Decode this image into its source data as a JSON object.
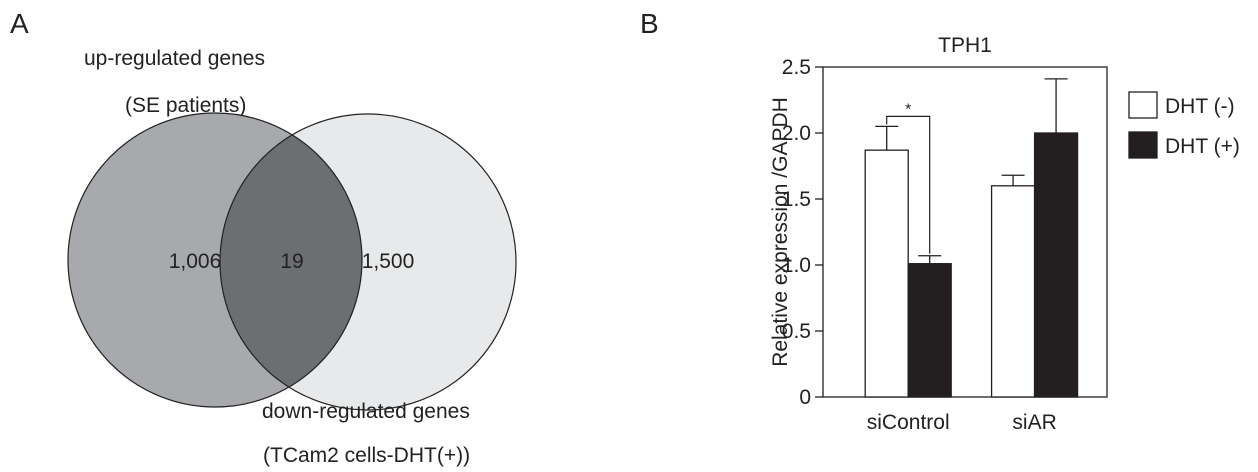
{
  "panel_a": {
    "letter": "A",
    "set_left_title": "up-regulated genes",
    "set_left_subtitle": "(SE patients)",
    "set_right_title": "down-regulated genes",
    "set_right_subtitle": "(TCam2 cells-DHT(+))",
    "left_only_count": "1,006",
    "intersection_count": "19",
    "right_only_count": "1,500",
    "colors": {
      "left": "#a7a9ac",
      "right": "#e8e9ea",
      "overlap": "#6d6e71",
      "stroke": "#222222"
    }
  },
  "panel_b": {
    "letter": "B"
  },
  "chart_data": {
    "type": "bar",
    "title": "TPH1",
    "ylabel": "Relative expression /GAPDH",
    "xlabel": "",
    "categories": [
      "siControl",
      "siAR"
    ],
    "series": [
      {
        "name": "DHT (-)",
        "color": "#ffffff",
        "values": [
          1.87,
          1.6
        ],
        "errors": [
          0.18,
          0.08
        ]
      },
      {
        "name": "DHT (+)",
        "color": "#231f20",
        "values": [
          1.01,
          2.0
        ],
        "errors": [
          0.06,
          0.41
        ]
      }
    ],
    "ylim": [
      0,
      2.5
    ],
    "yticks": [
      0,
      0.5,
      1.0,
      1.5,
      2.0,
      2.5
    ],
    "ytick_labels": [
      "0",
      "0.5",
      "1.0",
      "1.5",
      "2.0",
      "2.5"
    ],
    "grid": false,
    "legend_position": "right",
    "annotations": [
      {
        "text": "*",
        "category": "siControl",
        "between_series": [
          "DHT (-)",
          "DHT (+)"
        ]
      }
    ]
  }
}
